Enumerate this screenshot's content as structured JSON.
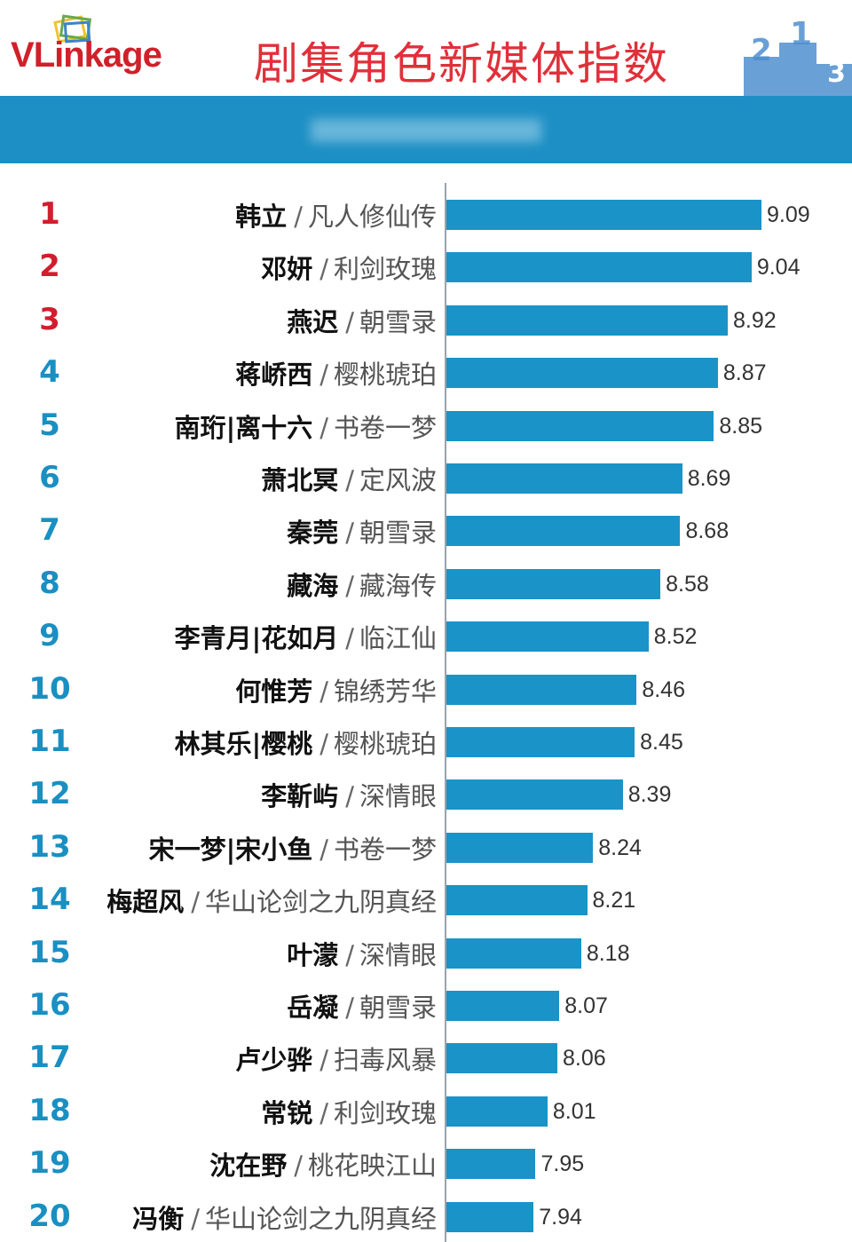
{
  "header": {
    "logo_v": "V",
    "logo_rest": "Link",
    "logo_age": "age",
    "title": "剧集角色新媒体指数",
    "podium_digits": [
      "2",
      "1",
      "3"
    ]
  },
  "colors": {
    "title": "#e0303a",
    "band": "#1d8fc4",
    "bar": "#1a93c8",
    "rank_top3": "#d01e2e",
    "rank_rest": "#1a8fc2"
  },
  "chart_data": {
    "type": "bar",
    "orientation": "horizontal",
    "xlim": [
      7.5,
      9.2
    ],
    "grid": false,
    "rows": [
      {
        "rank": "1",
        "name": "韩立",
        "drama": "凡人修仙传",
        "value": 9.09
      },
      {
        "rank": "2",
        "name": "邓妍",
        "drama": "利剑玫瑰",
        "value": 9.04
      },
      {
        "rank": "3",
        "name": "燕迟",
        "drama": "朝雪录",
        "value": 8.92
      },
      {
        "rank": "4",
        "name": "蒋峤西",
        "drama": "樱桃琥珀",
        "value": 8.87
      },
      {
        "rank": "5",
        "name": "南珩|离十六",
        "drama": "书卷一梦",
        "value": 8.85
      },
      {
        "rank": "6",
        "name": "萧北冥",
        "drama": "定风波",
        "value": 8.69
      },
      {
        "rank": "7",
        "name": "秦莞",
        "drama": "朝雪录",
        "value": 8.68
      },
      {
        "rank": "8",
        "name": "藏海",
        "drama": "藏海传",
        "value": 8.58
      },
      {
        "rank": "9",
        "name": "李青月|花如月",
        "drama": "临江仙",
        "value": 8.52
      },
      {
        "rank": "10",
        "name": "何惟芳",
        "drama": "锦绣芳华",
        "value": 8.46
      },
      {
        "rank": "11",
        "name": "林其乐|樱桃",
        "drama": "樱桃琥珀",
        "value": 8.45
      },
      {
        "rank": "12",
        "name": "李靳屿",
        "drama": "深情眼",
        "value": 8.39
      },
      {
        "rank": "13",
        "name": "宋一梦|宋小鱼",
        "drama": "书卷一梦",
        "value": 8.24
      },
      {
        "rank": "14",
        "name": "梅超风",
        "drama": "华山论剑之九阴真经",
        "value": 8.21
      },
      {
        "rank": "15",
        "name": "叶濛",
        "drama": "深情眼",
        "value": 8.18
      },
      {
        "rank": "16",
        "name": "岳凝",
        "drama": "朝雪录",
        "value": 8.07
      },
      {
        "rank": "17",
        "name": "卢少骅",
        "drama": "扫毒风暴",
        "value": 8.06
      },
      {
        "rank": "18",
        "name": "常锐",
        "drama": "利剑玫瑰",
        "value": 8.01
      },
      {
        "rank": "19",
        "name": "沈在野",
        "drama": "桃花映江山",
        "value": 7.95
      },
      {
        "rank": "20",
        "name": "冯衡",
        "drama": "华山论剑之九阴真经",
        "value": 7.94
      }
    ],
    "separator": "/"
  }
}
